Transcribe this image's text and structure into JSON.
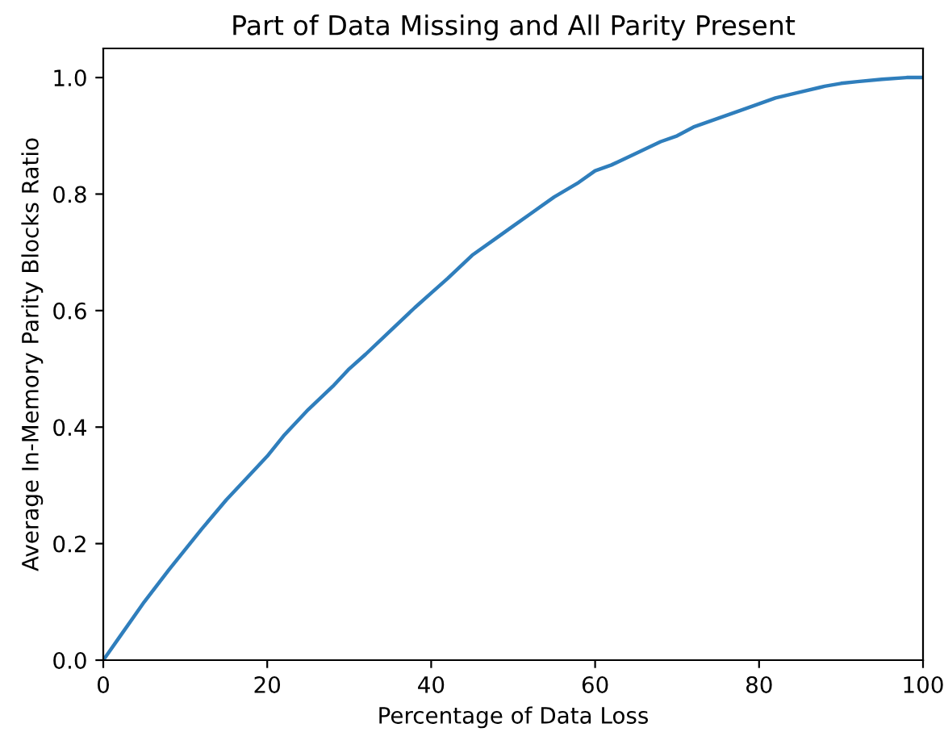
{
  "chart_data": {
    "type": "line",
    "title": "Part of Data Missing and All Parity Present",
    "xlabel": "Percentage of Data Loss",
    "ylabel": "Average In-Memory Parity Blocks Ratio",
    "x": [
      0,
      2,
      5,
      8,
      10,
      12,
      15,
      18,
      20,
      22,
      25,
      28,
      30,
      32,
      35,
      38,
      40,
      42,
      45,
      48,
      50,
      52,
      55,
      58,
      60,
      62,
      65,
      68,
      70,
      72,
      75,
      78,
      80,
      82,
      85,
      88,
      90,
      92,
      95,
      98,
      100
    ],
    "series": [
      {
        "color": "#2f7ebc",
        "values": [
          0,
          0.04,
          0.1,
          0.155,
          0.19,
          0.225,
          0.275,
          0.32,
          0.35,
          0.385,
          0.43,
          0.47,
          0.5,
          0.525,
          0.565,
          0.605,
          0.63,
          0.655,
          0.695,
          0.725,
          0.745,
          0.765,
          0.795,
          0.82,
          0.84,
          0.85,
          0.87,
          0.89,
          0.9,
          0.915,
          0.93,
          0.945,
          0.955,
          0.965,
          0.975,
          0.985,
          0.99,
          0.993,
          0.997,
          1.0,
          1.0
        ]
      }
    ],
    "xlim": [
      0,
      100
    ],
    "ylim": [
      0,
      1.05
    ],
    "xticks": [
      0,
      20,
      40,
      60,
      80,
      100
    ],
    "yticks": [
      {
        "value": 0,
        "label": "0.0"
      },
      {
        "value": 0.2,
        "label": "0.2"
      },
      {
        "value": 0.4,
        "label": "0.4"
      },
      {
        "value": 0.6,
        "label": "0.6"
      },
      {
        "value": 0.8,
        "label": "0.8"
      },
      {
        "value": 1.0,
        "label": "1.0"
      }
    ],
    "grid": false,
    "legend": false,
    "marker": "none",
    "line_style": "solid"
  }
}
